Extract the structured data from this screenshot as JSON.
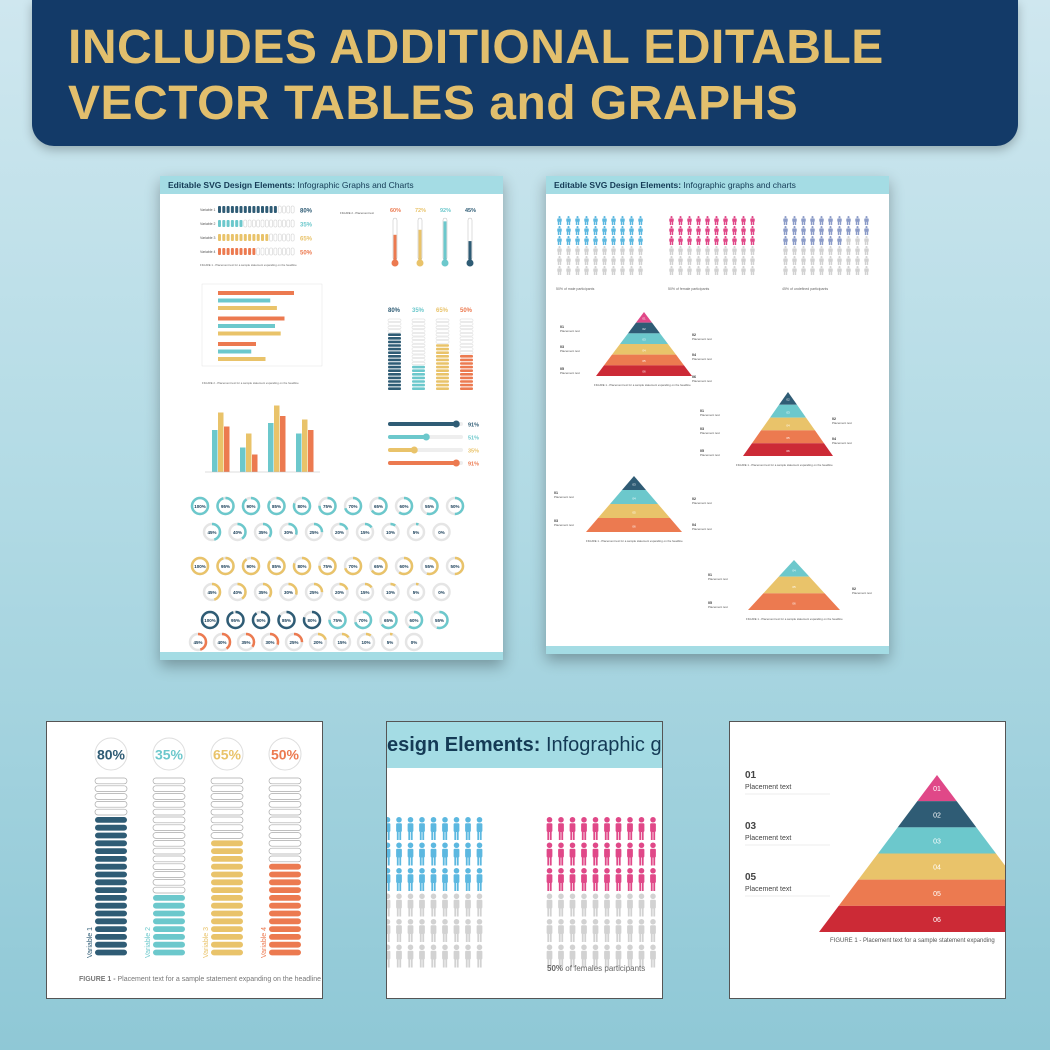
{
  "banner": {
    "line1": "INCLUDES ADDITIONAL EDITABLE",
    "line2": "VECTOR TABLES and GRAPHS"
  },
  "colors": {
    "navy": "#133a68",
    "gold": "#e2bf6d",
    "dark": "#2f5c75",
    "teal": "#6cc8cc",
    "yellow": "#e9c36a",
    "orange": "#ec7a50",
    "red": "#cc2a36",
    "pink": "#e04888",
    "blue": "#5cb8e0",
    "lav": "#8c9cc8",
    "gray": "#d2d2d2"
  },
  "page1": {
    "header_bold": "Editable SVG Design Elements:",
    "header_rest": " Infographic Graphs and Charts",
    "bars": [
      {
        "label": "Variable 1",
        "value": "80%",
        "fill": 0.8
      },
      {
        "label": "Variable 2",
        "value": "35%",
        "fill": 0.35
      },
      {
        "label": "Variable 3",
        "value": "65%",
        "fill": 0.65
      },
      {
        "label": "Variable 4",
        "value": "50%",
        "fill": 0.5
      }
    ],
    "thermo": [
      "60%",
      "72%",
      "92%",
      "45%"
    ],
    "stack": [
      "80%",
      "35%",
      "65%",
      "50%"
    ],
    "sliders": [
      "91%",
      "51%",
      "35%",
      "91%"
    ],
    "rings_row1": [
      "100%",
      "95%",
      "90%",
      "85%",
      "80%",
      "75%",
      "70%",
      "65%",
      "60%",
      "55%",
      "50%"
    ],
    "rings_row2": [
      "45%",
      "40%",
      "35%",
      "30%",
      "25%",
      "20%",
      "15%",
      "10%",
      "5%",
      "0%"
    ]
  },
  "page2": {
    "header_bold": "Editable SVG Design Elements:",
    "header_rest": " Infographic graphs and charts",
    "captions": [
      "50% of male participants",
      "50% of female participants",
      "45% of undefined participants"
    ],
    "pyramid_levels": [
      "01",
      "02",
      "03",
      "04",
      "05",
      "06"
    ],
    "label_nums": [
      "01",
      "03",
      "05",
      "02",
      "04",
      "06"
    ],
    "placement": "Placement text",
    "figure_caption": "FIGURE 1 - Placement text for a sample statement expanding on the headline"
  },
  "card1": {
    "values": [
      "80%",
      "35%",
      "65%",
      "50%"
    ],
    "vars": [
      "Variable 1",
      "Variable 2",
      "Variable 3",
      "Variable 4"
    ],
    "fills": [
      0.8,
      0.35,
      0.65,
      0.5
    ],
    "caption_bold": "FIGURE 1 - ",
    "caption_rest": "Placement text for a sample statement expanding on the headline"
  },
  "card2": {
    "header_bold": "esign Elements:",
    "header_rest": " Infographic gra",
    "caption_bold": "50%",
    "caption_rest": " of females  participants"
  },
  "card3": {
    "labels": [
      {
        "num": "01",
        "text": "Placement text"
      },
      {
        "num": "03",
        "text": "Placement text"
      },
      {
        "num": "05",
        "text": "Placement text"
      }
    ],
    "levels": [
      "01",
      "02",
      "03",
      "04",
      "05",
      "06"
    ],
    "caption": "FIGURE 1 - Placement text for a sample statement expanding"
  }
}
